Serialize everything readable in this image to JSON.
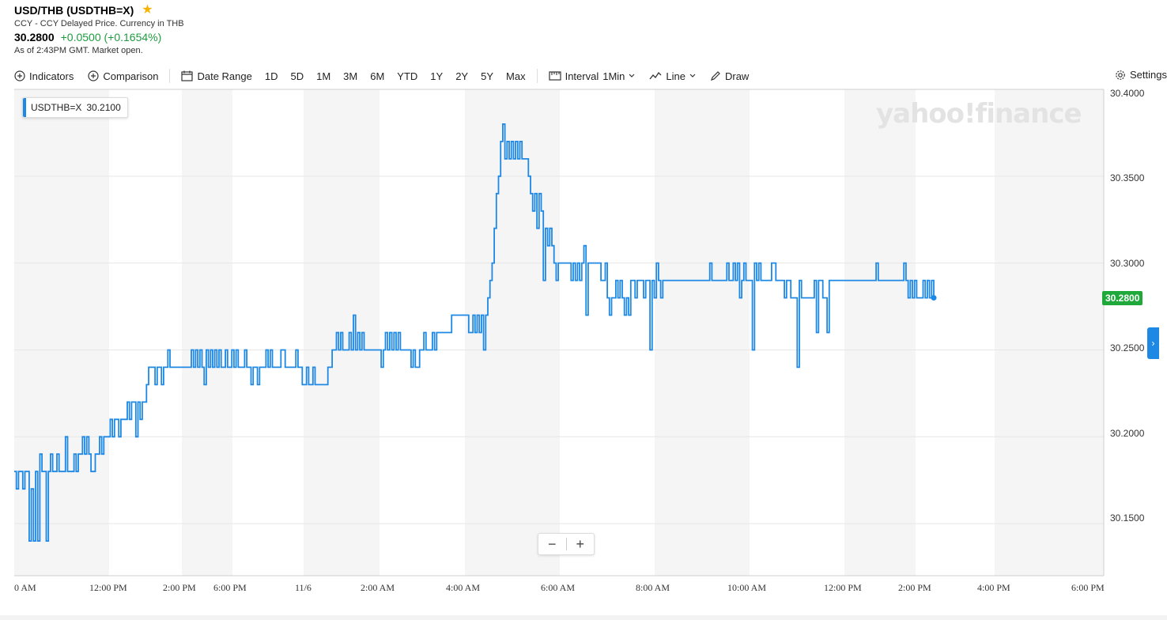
{
  "header": {
    "title": "USD/THB (USDTHB=X)",
    "subtitle": "CCY - CCY Delayed Price. Currency in THB",
    "price": "30.2800",
    "change": "+0.0500 (+0.1654%)",
    "as_of": "As of 2:43PM GMT. Market open."
  },
  "toolbar": {
    "indicators": "Indicators",
    "comparison": "Comparison",
    "date_range": "Date Range",
    "ranges": [
      "1D",
      "5D",
      "1M",
      "3M",
      "6M",
      "YTD",
      "1Y",
      "2Y",
      "5Y",
      "Max"
    ],
    "interval_label": "Interval",
    "interval_value": "1Min",
    "chart_type": "Line",
    "draw": "Draw",
    "settings": "Settings"
  },
  "tooltip": {
    "symbol": "USDTHB=X",
    "value": "30.2100"
  },
  "watermark": "yahoo!finance",
  "price_tag": "30.2800",
  "colors": {
    "line": "#1e88e5",
    "up": "#1d9c3f",
    "price_tag": "#1fa93a",
    "band": "#f5f5f5",
    "star": "#f5b400"
  },
  "chart_data": {
    "type": "line",
    "series": [
      {
        "name": "USDTHB=X",
        "values": [
          30.18,
          30.17,
          30.18,
          30.18,
          30.17,
          30.18,
          30.18,
          30.14,
          30.17,
          30.14,
          30.18,
          30.14,
          30.19,
          30.18,
          30.18,
          30.14,
          30.18,
          30.19,
          30.18,
          30.18,
          30.19,
          30.18,
          30.18,
          30.18,
          30.2,
          30.18,
          30.18,
          30.18,
          30.19,
          30.18,
          30.19,
          30.19,
          30.2,
          30.19,
          30.2,
          30.19,
          30.18,
          30.18,
          30.19,
          30.19,
          30.2,
          30.19,
          30.2,
          30.2,
          30.2,
          30.21,
          30.2,
          30.21,
          30.21,
          30.2,
          30.21,
          30.21,
          30.21,
          30.22,
          30.21,
          30.22,
          30.22,
          30.2,
          30.22,
          30.21,
          30.22,
          30.22,
          30.23,
          30.24,
          30.24,
          30.24,
          30.23,
          30.24,
          30.24,
          30.23,
          30.24,
          30.24,
          30.25,
          30.24,
          30.24,
          30.24,
          30.24,
          30.24,
          30.24,
          30.24,
          30.24,
          30.24,
          30.24,
          30.25,
          30.24,
          30.25,
          30.24,
          30.25,
          30.24,
          30.23,
          30.25,
          30.24,
          30.25,
          30.24,
          30.25,
          30.24,
          30.25,
          30.24,
          30.24,
          30.25,
          30.24,
          30.24,
          30.25,
          30.24,
          30.25,
          30.24,
          30.24,
          30.24,
          30.25,
          30.24,
          30.24,
          30.23,
          30.24,
          30.24,
          30.23,
          30.24,
          30.24,
          30.24,
          30.25,
          30.24,
          30.25,
          30.24,
          30.24,
          30.24,
          30.24,
          30.25,
          30.25,
          30.24,
          30.24,
          30.24,
          30.24,
          30.24,
          30.25,
          30.24,
          30.24,
          30.23,
          30.23,
          30.24,
          30.23,
          30.23,
          30.24,
          30.23,
          30.23,
          30.23,
          30.23,
          30.23,
          30.23,
          30.24,
          30.24,
          30.25,
          30.25,
          30.26,
          30.25,
          30.26,
          30.25,
          30.25,
          30.25,
          30.26,
          30.25,
          30.27,
          30.25,
          30.26,
          30.25,
          30.26,
          30.25,
          30.25,
          30.25,
          30.25,
          30.25,
          30.25,
          30.25,
          30.25,
          30.24,
          30.25,
          30.26,
          30.25,
          30.26,
          30.25,
          30.26,
          30.25,
          30.26,
          30.25,
          30.25,
          30.25,
          30.25,
          30.25,
          30.24,
          30.25,
          30.24,
          30.24,
          30.25,
          30.25,
          30.26,
          30.25,
          30.25,
          30.25,
          30.26,
          30.25,
          30.26,
          30.26,
          30.26,
          30.26,
          30.26,
          30.26,
          30.26,
          30.27,
          30.27,
          30.27,
          30.27,
          30.27,
          30.27,
          30.27,
          30.27,
          30.26,
          30.26,
          30.27,
          30.26,
          30.27,
          30.26,
          30.27,
          30.25,
          30.27,
          30.28,
          30.29,
          30.3,
          30.32,
          30.34,
          30.35,
          30.37,
          30.38,
          30.36,
          30.37,
          30.36,
          30.37,
          30.36,
          30.37,
          30.36,
          30.37,
          30.36,
          30.36,
          30.36,
          30.35,
          30.34,
          30.33,
          30.34,
          30.32,
          30.34,
          30.33,
          30.29,
          30.32,
          30.31,
          30.32,
          30.31,
          30.3,
          30.29,
          30.3,
          30.3,
          30.3,
          30.3,
          30.3,
          30.3,
          30.29,
          30.3,
          30.29,
          30.3,
          30.29,
          30.3,
          30.31,
          30.27,
          30.3,
          30.3,
          30.3,
          30.3,
          30.3,
          30.3,
          30.29,
          30.29,
          30.3,
          30.28,
          30.27,
          30.28,
          30.28,
          30.29,
          30.28,
          30.29,
          30.28,
          30.27,
          30.28,
          30.27,
          30.29,
          30.29,
          30.28,
          30.29,
          30.29,
          30.29,
          30.28,
          30.29,
          30.29,
          30.25,
          30.29,
          30.28,
          30.3,
          30.29,
          30.28,
          30.29,
          30.29,
          30.29,
          30.29,
          30.29,
          30.29,
          30.29,
          30.29,
          30.29,
          30.29,
          30.29,
          30.29,
          30.29,
          30.29,
          30.29,
          30.29,
          30.29,
          30.29,
          30.29,
          30.29,
          30.29,
          30.29,
          30.3,
          30.29,
          30.29,
          30.29,
          30.29,
          30.29,
          30.29,
          30.29,
          30.3,
          30.29,
          30.29,
          30.3,
          30.29,
          30.3,
          30.28,
          30.29,
          30.3,
          30.29,
          30.29,
          30.29,
          30.25,
          30.3,
          30.29,
          30.3,
          30.29,
          30.29,
          30.29,
          30.29,
          30.29,
          30.3,
          30.3,
          30.29,
          30.29,
          30.29,
          30.29,
          30.28,
          30.29,
          30.29,
          30.28,
          30.28,
          30.28,
          30.24,
          30.29,
          30.28,
          30.28,
          30.28,
          30.28,
          30.28,
          30.28,
          30.29,
          30.26,
          30.29,
          30.29,
          30.28,
          30.28,
          30.26,
          30.29,
          30.29,
          30.29,
          30.29,
          30.29,
          30.29,
          30.29,
          30.29,
          30.29,
          30.29,
          30.29,
          30.29,
          30.29,
          30.29,
          30.29,
          30.29,
          30.29,
          30.29,
          30.29,
          30.29,
          30.29,
          30.29,
          30.3,
          30.29,
          30.29,
          30.29,
          30.29,
          30.29,
          30.29,
          30.29,
          30.29,
          30.29,
          30.29,
          30.29,
          30.29,
          30.3,
          30.29,
          30.28,
          30.29,
          30.28,
          30.29,
          30.28,
          30.28,
          30.28,
          30.29,
          30.28,
          30.29,
          30.28,
          30.29,
          30.28
        ]
      }
    ],
    "ylim": [
      30.12,
      30.4
    ],
    "y_ticks": [
      "30.4000",
      "30.3500",
      "30.3000",
      "30.2500",
      "30.2000",
      "30.1500"
    ],
    "x_tick_labels": [
      "0 AM",
      "12:00 PM",
      "2:00 PM",
      "6:00 PM",
      "11/6",
      "2:00 AM",
      "4:00 AM",
      "6:00 AM",
      "8:00 AM",
      "10:00 AM",
      "12:00 PM",
      "2:00 PM",
      "4:00 PM",
      "6:00 PM"
    ],
    "grid": true
  }
}
